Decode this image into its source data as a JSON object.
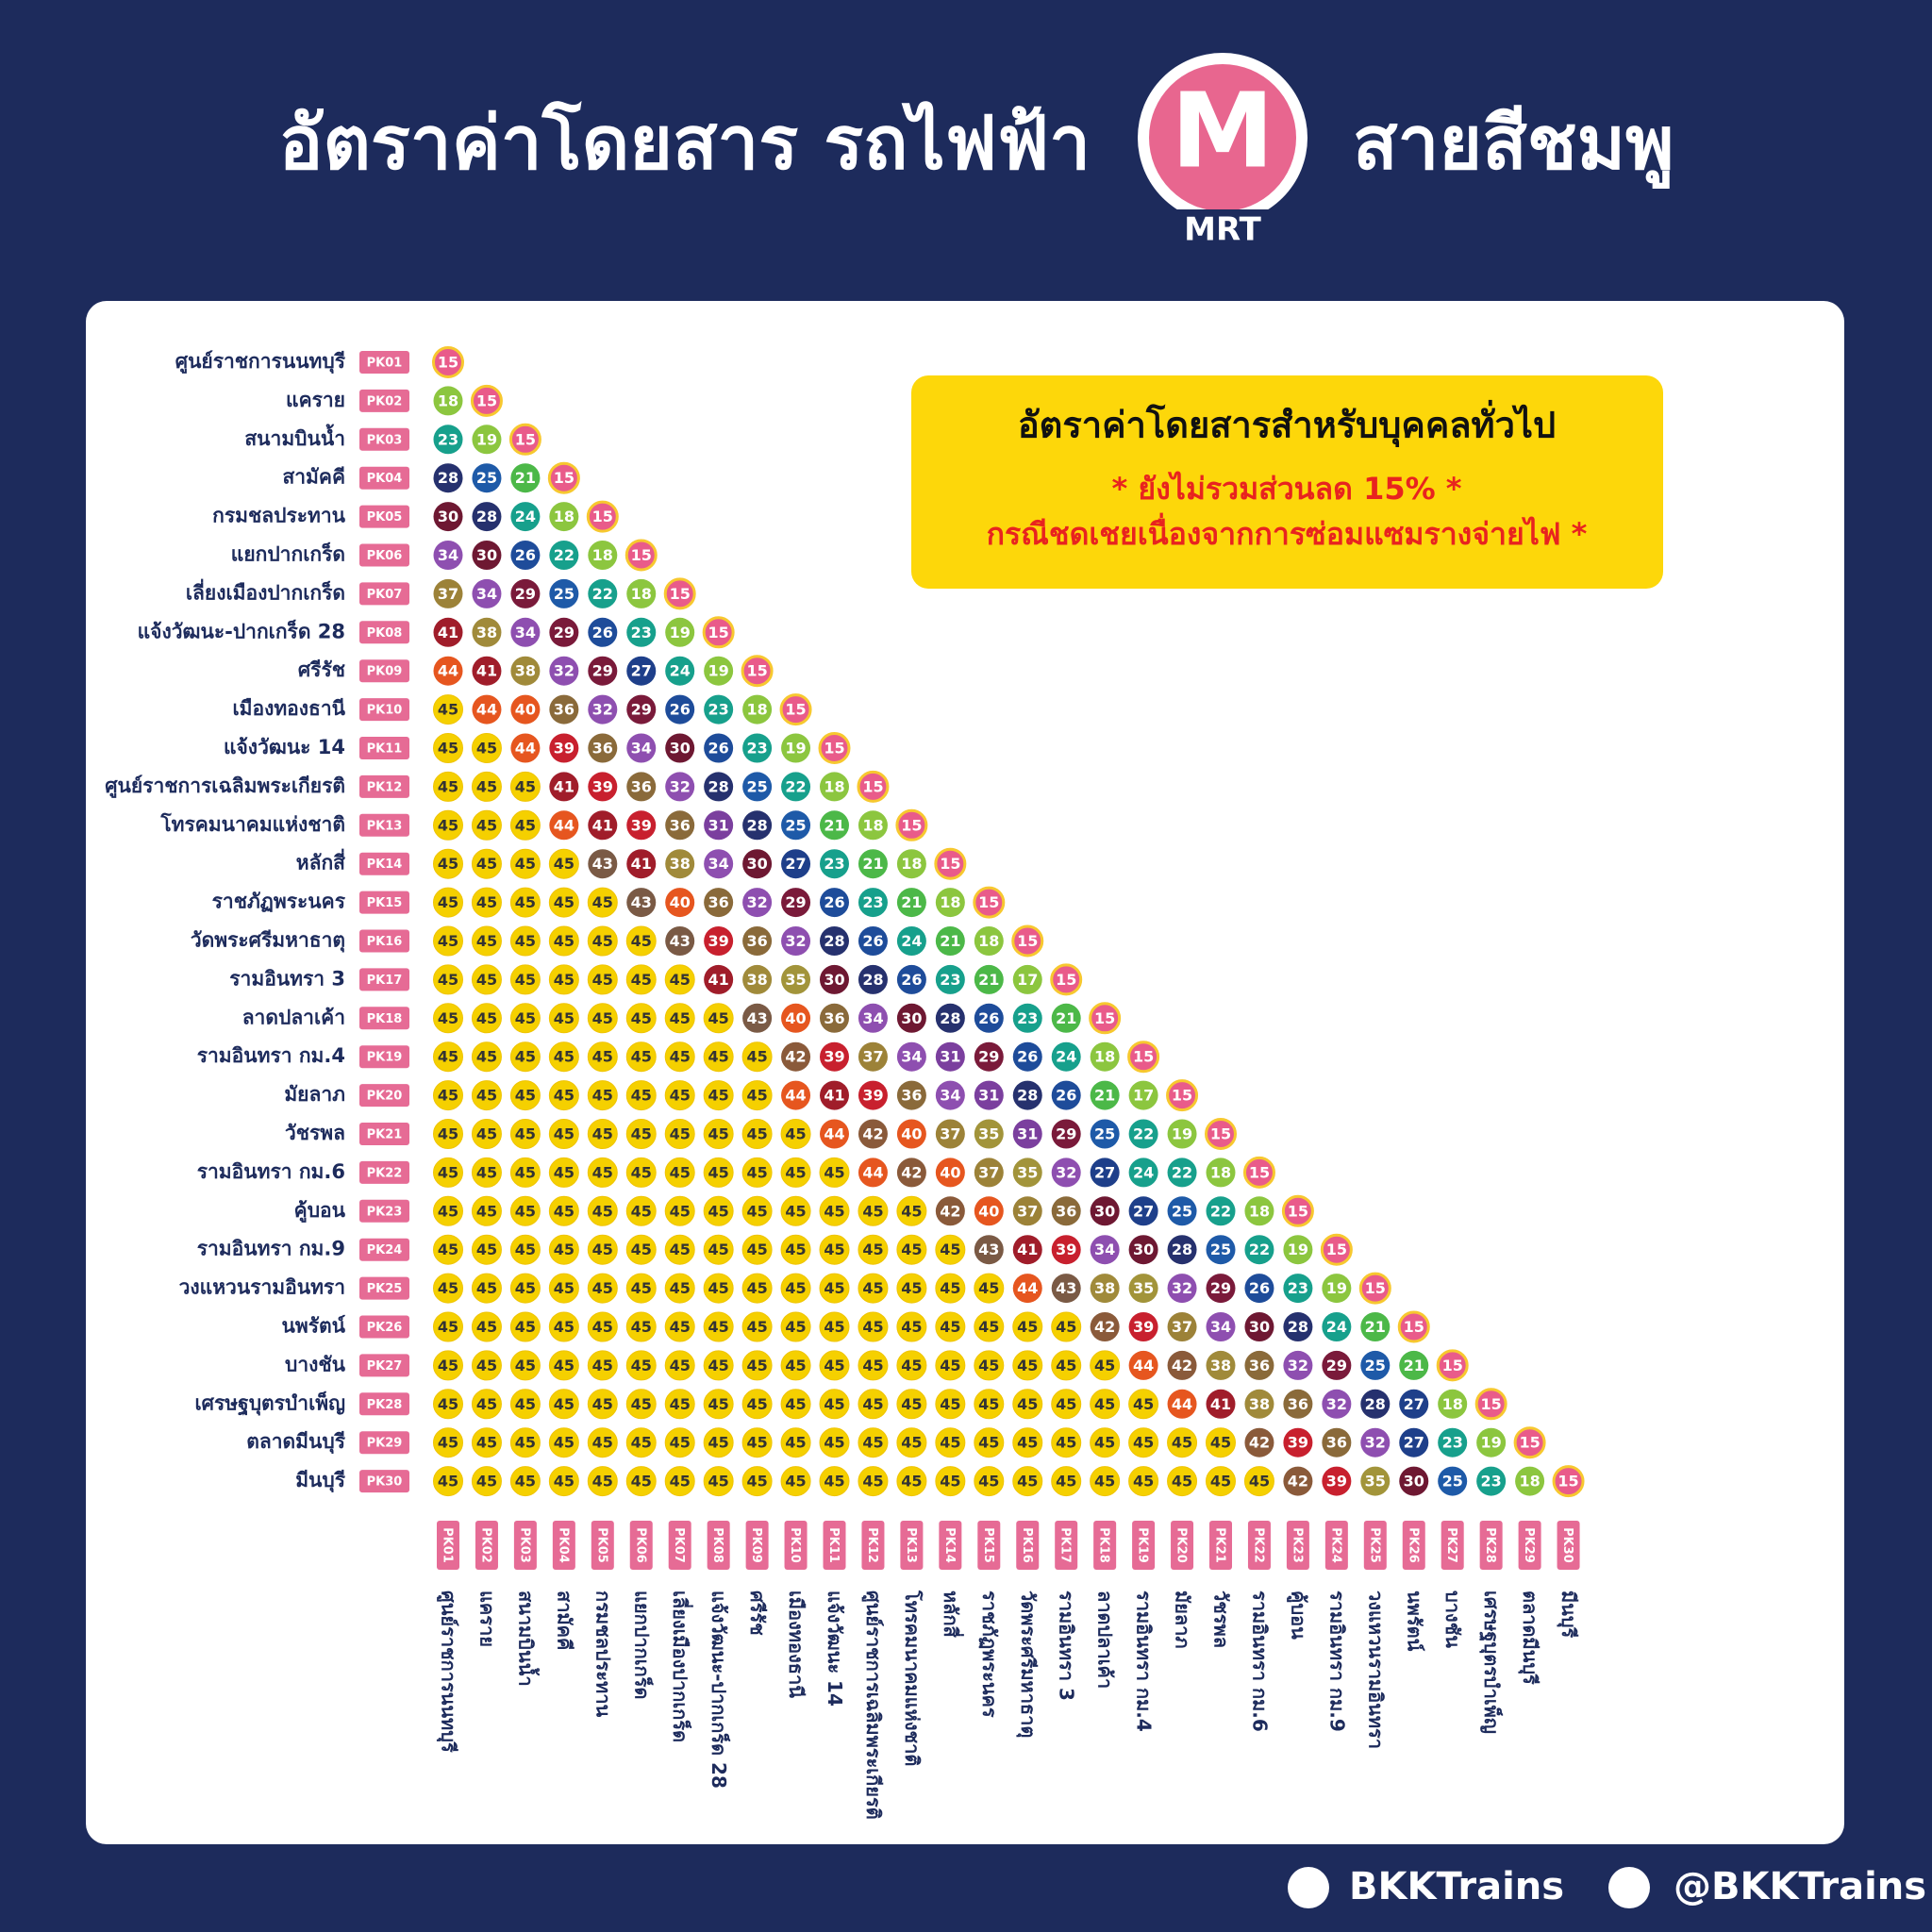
{
  "header": {
    "title_left": "อัตราค่าโดยสาร รถไฟฟ้า",
    "logo_letter": "M",
    "logo_text": "MRT",
    "title_right": "สายสีชมพู"
  },
  "notice": {
    "title": "อัตราค่าโดยสารสำหรับบุคคลทั่วไป",
    "line1": "* ยังไม่รวมส่วนลด 15% *",
    "line2": "กรณีชดเชยเนื่องจากการซ่อมแซมรางจ่ายไฟ *"
  },
  "stations": [
    {
      "code": "PK01",
      "name": "ศูนย์ราชการนนทบุรี"
    },
    {
      "code": "PK02",
      "name": "แคราย"
    },
    {
      "code": "PK03",
      "name": "สนามบินน้ำ"
    },
    {
      "code": "PK04",
      "name": "สามัคคี"
    },
    {
      "code": "PK05",
      "name": "กรมชลประทาน"
    },
    {
      "code": "PK06",
      "name": "แยกปากเกร็ด"
    },
    {
      "code": "PK07",
      "name": "เลี่ยงเมืองปากเกร็ด"
    },
    {
      "code": "PK08",
      "name": "แจ้งวัฒนะ-ปากเกร็ด 28"
    },
    {
      "code": "PK09",
      "name": "ศรีรัช"
    },
    {
      "code": "PK10",
      "name": "เมืองทองธานี"
    },
    {
      "code": "PK11",
      "name": "แจ้งวัฒนะ 14"
    },
    {
      "code": "PK12",
      "name": "ศูนย์ราชการเฉลิมพระเกียรติ"
    },
    {
      "code": "PK13",
      "name": "โทรคมนาคมแห่งชาติ"
    },
    {
      "code": "PK14",
      "name": "หลักสี่"
    },
    {
      "code": "PK15",
      "name": "ราชภัฏพระนคร"
    },
    {
      "code": "PK16",
      "name": "วัดพระศรีมหาธาตุ"
    },
    {
      "code": "PK17",
      "name": "รามอินทรา 3"
    },
    {
      "code": "PK18",
      "name": "ลาดปลาเค้า"
    },
    {
      "code": "PK19",
      "name": "รามอินทรา กม.4"
    },
    {
      "code": "PK20",
      "name": "มัยลาภ"
    },
    {
      "code": "PK21",
      "name": "วัชรพล"
    },
    {
      "code": "PK22",
      "name": "รามอินทรา กม.6"
    },
    {
      "code": "PK23",
      "name": "คู้บอน"
    },
    {
      "code": "PK24",
      "name": "รามอินทรา กม.9"
    },
    {
      "code": "PK25",
      "name": "วงแหวนรามอินทรา"
    },
    {
      "code": "PK26",
      "name": "นพรัตน์"
    },
    {
      "code": "PK27",
      "name": "บางชัน"
    },
    {
      "code": "PK28",
      "name": "เศรษฐบุตรบำเพ็ญ"
    },
    {
      "code": "PK29",
      "name": "ตลาดมีนบุรี"
    },
    {
      "code": "PK30",
      "name": "มีนบุรี"
    }
  ],
  "fares": [
    [
      15
    ],
    [
      18,
      15
    ],
    [
      23,
      19,
      15
    ],
    [
      28,
      25,
      21,
      15
    ],
    [
      30,
      28,
      24,
      18,
      15
    ],
    [
      34,
      30,
      26,
      22,
      18,
      15
    ],
    [
      37,
      34,
      29,
      25,
      22,
      18,
      15
    ],
    [
      41,
      38,
      34,
      29,
      26,
      23,
      19,
      15
    ],
    [
      44,
      41,
      38,
      32,
      29,
      27,
      24,
      19,
      15
    ],
    [
      45,
      44,
      40,
      36,
      32,
      29,
      26,
      23,
      18,
      15
    ],
    [
      45,
      45,
      44,
      39,
      36,
      34,
      30,
      26,
      23,
      19,
      15
    ],
    [
      45,
      45,
      45,
      41,
      39,
      36,
      32,
      28,
      25,
      22,
      18,
      15
    ],
    [
      45,
      45,
      45,
      44,
      41,
      39,
      36,
      31,
      28,
      25,
      21,
      18,
      15
    ],
    [
      45,
      45,
      45,
      45,
      43,
      41,
      38,
      34,
      30,
      27,
      23,
      21,
      18,
      15
    ],
    [
      45,
      45,
      45,
      45,
      45,
      43,
      40,
      36,
      32,
      29,
      26,
      23,
      21,
      18,
      15
    ],
    [
      45,
      45,
      45,
      45,
      45,
      45,
      43,
      39,
      36,
      32,
      28,
      26,
      24,
      21,
      18,
      15
    ],
    [
      45,
      45,
      45,
      45,
      45,
      45,
      45,
      41,
      38,
      35,
      30,
      28,
      26,
      23,
      21,
      17,
      15
    ],
    [
      45,
      45,
      45,
      45,
      45,
      45,
      45,
      45,
      43,
      40,
      36,
      34,
      30,
      28,
      26,
      23,
      21,
      15
    ],
    [
      45,
      45,
      45,
      45,
      45,
      45,
      45,
      45,
      45,
      42,
      39,
      37,
      34,
      31,
      29,
      26,
      24,
      18,
      15
    ],
    [
      45,
      45,
      45,
      45,
      45,
      45,
      45,
      45,
      45,
      44,
      41,
      39,
      36,
      34,
      31,
      28,
      26,
      21,
      17,
      15
    ],
    [
      45,
      45,
      45,
      45,
      45,
      45,
      45,
      45,
      45,
      45,
      44,
      42,
      40,
      37,
      35,
      31,
      29,
      25,
      22,
      19,
      15
    ],
    [
      45,
      45,
      45,
      45,
      45,
      45,
      45,
      45,
      45,
      45,
      45,
      44,
      42,
      40,
      37,
      35,
      32,
      27,
      24,
      22,
      18,
      15
    ],
    [
      45,
      45,
      45,
      45,
      45,
      45,
      45,
      45,
      45,
      45,
      45,
      45,
      45,
      42,
      40,
      37,
      36,
      30,
      27,
      25,
      22,
      18,
      15
    ],
    [
      45,
      45,
      45,
      45,
      45,
      45,
      45,
      45,
      45,
      45,
      45,
      45,
      45,
      45,
      43,
      41,
      39,
      34,
      30,
      28,
      25,
      22,
      19,
      15
    ],
    [
      45,
      45,
      45,
      45,
      45,
      45,
      45,
      45,
      45,
      45,
      45,
      45,
      45,
      45,
      45,
      44,
      43,
      38,
      35,
      32,
      29,
      26,
      23,
      19,
      15
    ],
    [
      45,
      45,
      45,
      45,
      45,
      45,
      45,
      45,
      45,
      45,
      45,
      45,
      45,
      45,
      45,
      45,
      45,
      42,
      39,
      37,
      34,
      30,
      28,
      24,
      21,
      15
    ],
    [
      45,
      45,
      45,
      45,
      45,
      45,
      45,
      45,
      45,
      45,
      45,
      45,
      45,
      45,
      45,
      45,
      45,
      45,
      44,
      42,
      38,
      36,
      32,
      29,
      25,
      21,
      15
    ],
    [
      45,
      45,
      45,
      45,
      45,
      45,
      45,
      45,
      45,
      45,
      45,
      45,
      45,
      45,
      45,
      45,
      45,
      45,
      45,
      44,
      41,
      38,
      36,
      32,
      28,
      27,
      18,
      15
    ],
    [
      45,
      45,
      45,
      45,
      45,
      45,
      45,
      45,
      45,
      45,
      45,
      45,
      45,
      45,
      45,
      45,
      45,
      45,
      45,
      45,
      45,
      42,
      39,
      36,
      32,
      27,
      23,
      19,
      15
    ],
    [
      45,
      45,
      45,
      45,
      45,
      45,
      45,
      45,
      45,
      45,
      45,
      45,
      45,
      45,
      45,
      45,
      45,
      45,
      45,
      45,
      45,
      45,
      42,
      39,
      35,
      30,
      25,
      23,
      18,
      15
    ]
  ],
  "fare_colors": {
    "15": "#e95b8a",
    "17": "#8cc63f",
    "18": "#8cc63f",
    "19": "#8cc63f",
    "21": "#4cb848",
    "22": "#17a08c",
    "23": "#17a08c",
    "24": "#17a08c",
    "25": "#1e5aa8",
    "26": "#1e4c9a",
    "27": "#1e3f8a",
    "28": "#26316e",
    "29": "#7a1a3a",
    "30": "#6e1832",
    "31": "#7b3f9e",
    "32": "#8e4fb0",
    "34": "#8e4fb0",
    "35": "#a2943a",
    "36": "#8a6a3a",
    "37": "#9c8238",
    "38": "#a08a3a",
    "39": "#c8202e",
    "40": "#e6561f",
    "41": "#a01d2a",
    "42": "#8a5a3a",
    "43": "#7a5a45",
    "44": "#e6561f",
    "45": "#f5d000"
  },
  "footer": {
    "facebook": "BKKTrains",
    "twitter": "@BKKTrains"
  }
}
